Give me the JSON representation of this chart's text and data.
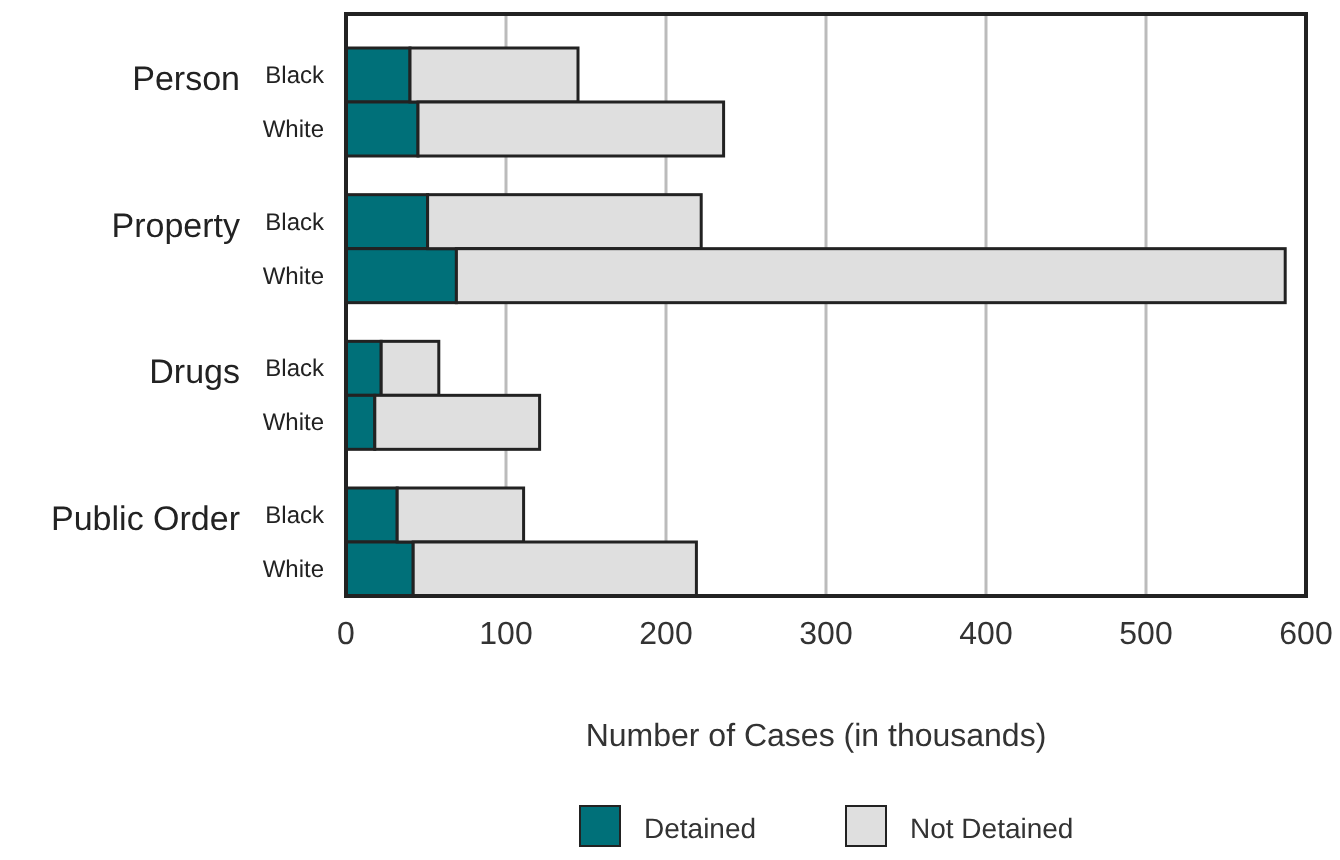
{
  "chart_data": {
    "type": "bar",
    "orientation": "horizontal",
    "stacked": true,
    "xlabel": "Number of Cases (in thousands)",
    "categories": [
      "Black",
      "White",
      "Black",
      "White",
      "Black",
      "White",
      "Black",
      "White"
    ],
    "annotations": [
      "Person",
      "Property",
      "Drugs",
      "Public Order"
    ],
    "series": [
      {
        "name": "Detained",
        "color": "#007079",
        "values": [
          40,
          45,
          51,
          69,
          22,
          18,
          32,
          42
        ]
      },
      {
        "name": "Not Detained",
        "color": "#dfdfdf",
        "values": [
          105,
          191,
          171,
          518,
          36,
          103,
          79,
          177
        ]
      }
    ],
    "xlim": [
      0,
      600
    ],
    "xticks": [
      0,
      100,
      200,
      300,
      400,
      500,
      600
    ],
    "grid": "x",
    "legend": "bottom"
  }
}
